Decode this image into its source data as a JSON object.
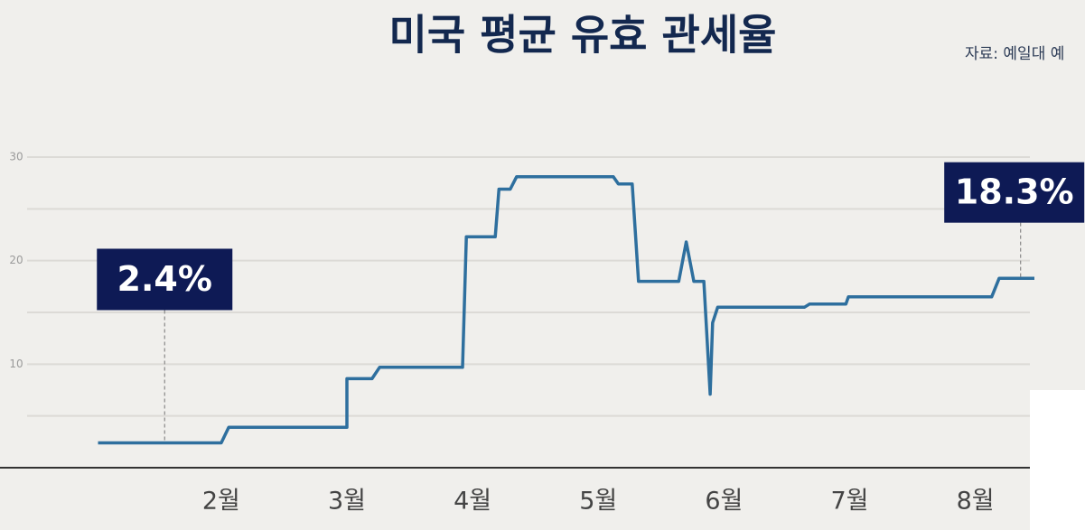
{
  "chart_data": {
    "type": "line",
    "title": "미국 평균 유효 관세율",
    "source": "자료: 예일대 예",
    "x": [
      1.02,
      2.0,
      2.06,
      3.0,
      3.0,
      3.2,
      3.26,
      3.92,
      3.95,
      4.18,
      4.21,
      4.3,
      4.35,
      5.12,
      5.16,
      5.27,
      5.32,
      5.64,
      5.7,
      5.76,
      5.84,
      5.89,
      5.91,
      5.95,
      6.64,
      6.68,
      6.97,
      6.99,
      8.13,
      8.19,
      8.47
    ],
    "series": [
      {
        "color": "#2e6f9e",
        "values": [
          2.4,
          2.4,
          3.9,
          3.9,
          8.6,
          8.6,
          9.7,
          9.7,
          22.3,
          22.3,
          26.9,
          26.9,
          28.1,
          28.1,
          27.4,
          27.4,
          18.0,
          18.0,
          21.8,
          18.0,
          18.0,
          7.1,
          14.0,
          15.5,
          15.5,
          15.8,
          15.8,
          16.5,
          16.5,
          18.3,
          18.3
        ]
      }
    ],
    "xlim": [
      0.24,
      8.47
    ],
    "xticks": [
      {
        "value": 2,
        "label": "2월"
      },
      {
        "value": 3,
        "label": "3월"
      },
      {
        "value": 4,
        "label": "4월"
      },
      {
        "value": 5,
        "label": "5월"
      },
      {
        "value": 6,
        "label": "6월"
      },
      {
        "value": 7,
        "label": "7월"
      },
      {
        "value": 8,
        "label": "8월"
      }
    ],
    "ylim": [
      0,
      30.4
    ],
    "yticks": [
      10,
      20,
      30
    ],
    "ygrid": [
      5,
      10,
      15,
      20,
      25,
      30
    ],
    "annotations": [
      {
        "x": 1.55,
        "y": 2.4,
        "label": "2.4%"
      },
      {
        "x": 8.36,
        "y": 18.3,
        "label": "18.3%"
      }
    ]
  }
}
